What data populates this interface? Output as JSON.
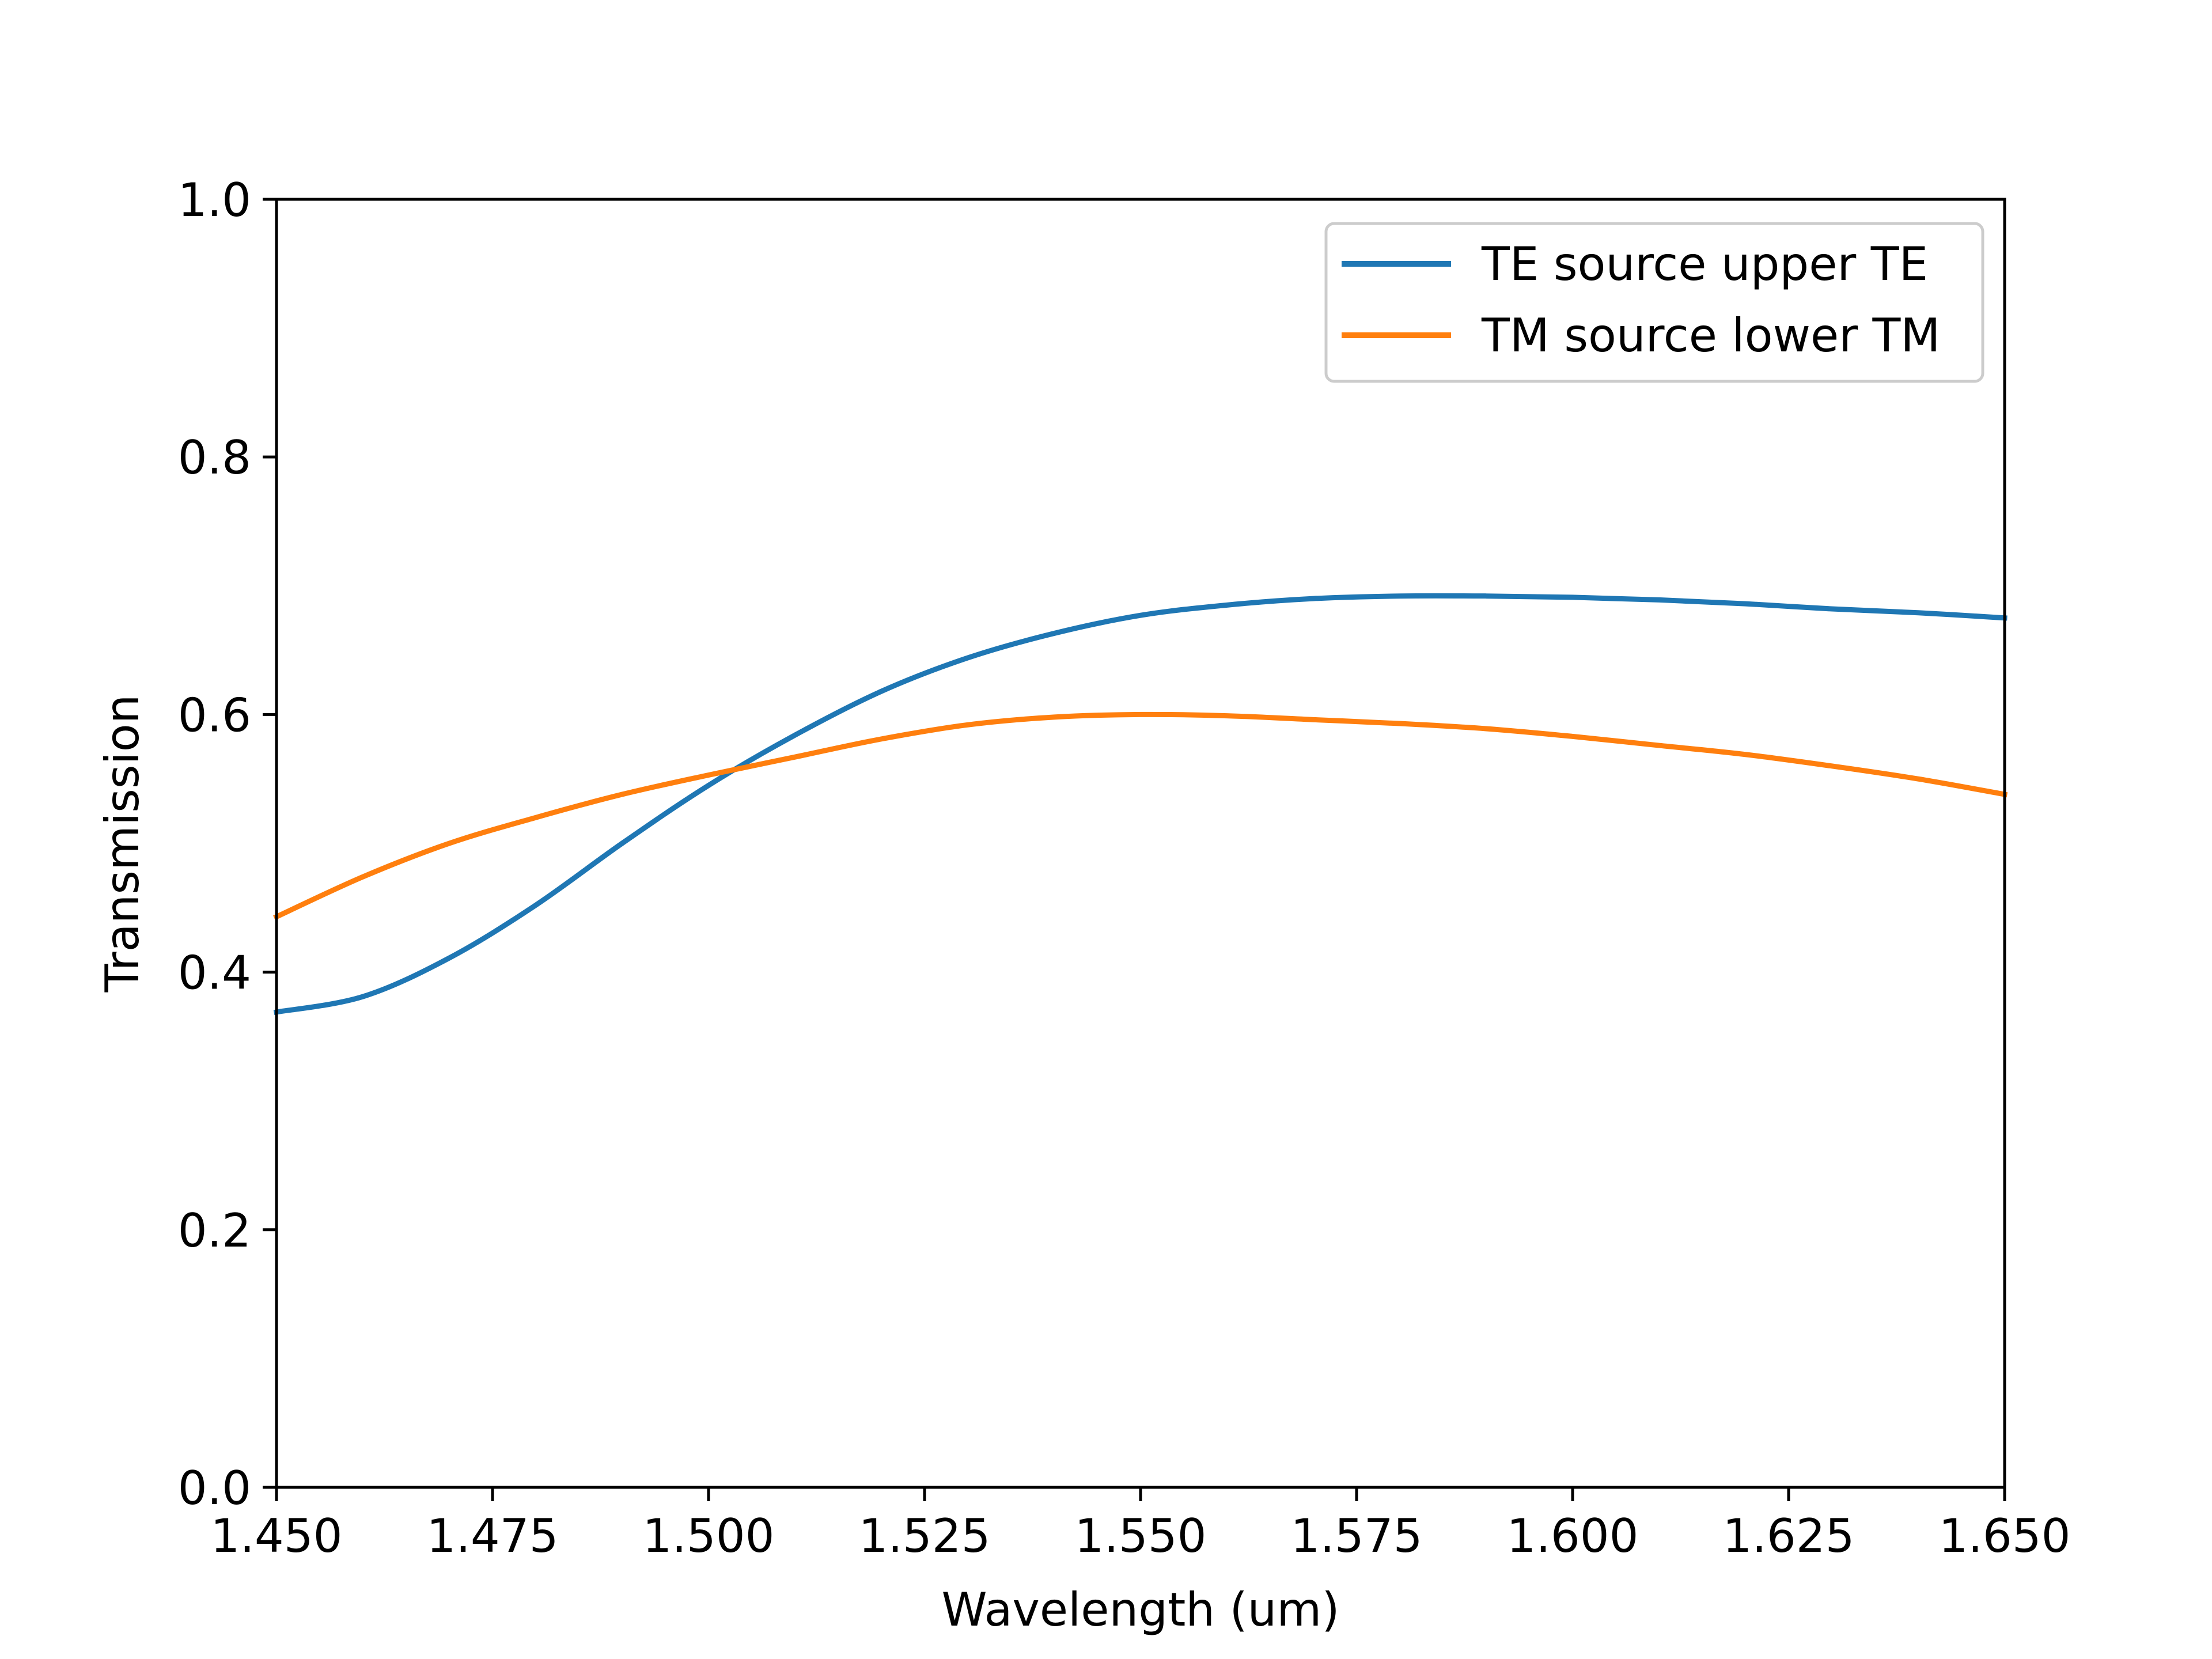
{
  "chart_data": {
    "type": "line",
    "title": "",
    "xlabel": "Wavelength (um)",
    "ylabel": "Transmission",
    "xlim": [
      1.45,
      1.65
    ],
    "ylim": [
      0.0,
      1.0
    ],
    "xticks": [
      "1.450",
      "1.475",
      "1.500",
      "1.525",
      "1.550",
      "1.575",
      "1.600",
      "1.625",
      "1.650"
    ],
    "yticks": [
      "0.0",
      "0.2",
      "0.4",
      "0.6",
      "0.8",
      "1.0"
    ],
    "grid": false,
    "legend_position": "upper right",
    "x": [
      1.45,
      1.46,
      1.47,
      1.48,
      1.49,
      1.5,
      1.51,
      1.52,
      1.53,
      1.54,
      1.55,
      1.56,
      1.57,
      1.58,
      1.59,
      1.6,
      1.61,
      1.62,
      1.63,
      1.64,
      1.65
    ],
    "series": [
      {
        "name": "TE source upper TE",
        "color": "#1f77b4",
        "values": [
          0.369,
          0.381,
          0.411,
          0.452,
          0.5,
          0.545,
          0.584,
          0.618,
          0.644,
          0.663,
          0.677,
          0.685,
          0.69,
          0.692,
          0.692,
          0.691,
          0.689,
          0.686,
          0.682,
          0.679,
          0.675
        ]
      },
      {
        "name": "TM source lower TM",
        "color": "#ff7f0e",
        "values": [
          0.443,
          0.474,
          0.5,
          0.52,
          0.538,
          0.553,
          0.567,
          0.581,
          0.592,
          0.598,
          0.6,
          0.599,
          0.596,
          0.593,
          0.589,
          0.583,
          0.576,
          0.569,
          0.56,
          0.55,
          0.538
        ]
      }
    ]
  }
}
